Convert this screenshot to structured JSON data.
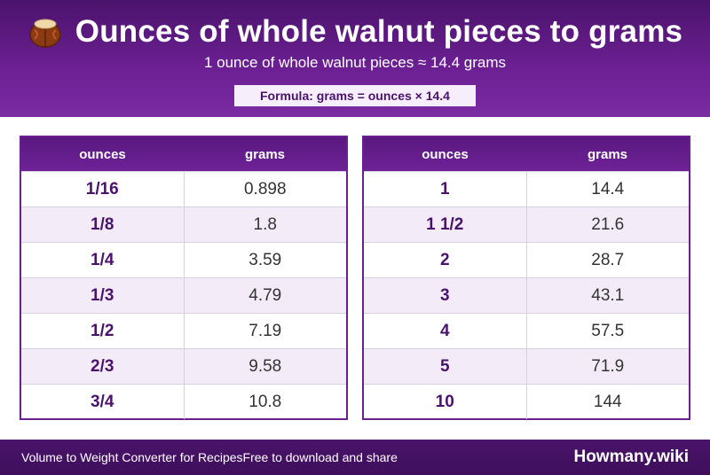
{
  "header": {
    "icon": "walnut-icon",
    "title": "Ounces of whole walnut pieces to grams",
    "subtitle": "1 ounce of whole walnut pieces ≈ 14.4 grams",
    "formula": "Formula: grams = ounces × 14.4"
  },
  "tables": [
    {
      "col_ounces": "ounces",
      "col_grams": "grams",
      "rows": [
        {
          "ounces": "1/16",
          "grams": "0.898"
        },
        {
          "ounces": "1/8",
          "grams": "1.8"
        },
        {
          "ounces": "1/4",
          "grams": "3.59"
        },
        {
          "ounces": "1/3",
          "grams": "4.79"
        },
        {
          "ounces": "1/2",
          "grams": "7.19"
        },
        {
          "ounces": "2/3",
          "grams": "9.58"
        },
        {
          "ounces": "3/4",
          "grams": "10.8"
        }
      ]
    },
    {
      "col_ounces": "ounces",
      "col_grams": "grams",
      "rows": [
        {
          "ounces": "1",
          "grams": "14.4"
        },
        {
          "ounces": "1 1/2",
          "grams": "21.6"
        },
        {
          "ounces": "2",
          "grams": "28.7"
        },
        {
          "ounces": "3",
          "grams": "43.1"
        },
        {
          "ounces": "4",
          "grams": "57.5"
        },
        {
          "ounces": "5",
          "grams": "71.9"
        },
        {
          "ounces": "10",
          "grams": "144"
        }
      ]
    }
  ],
  "footer": {
    "left_text_1": "Volume to Weight Converter for Recipes",
    "left_text_2": "Free to download and share",
    "brand": "Howmany.wiki"
  },
  "colors": {
    "primary": "#6a1f91",
    "dark": "#4a136b",
    "row_alt": "#f3ecf8"
  }
}
